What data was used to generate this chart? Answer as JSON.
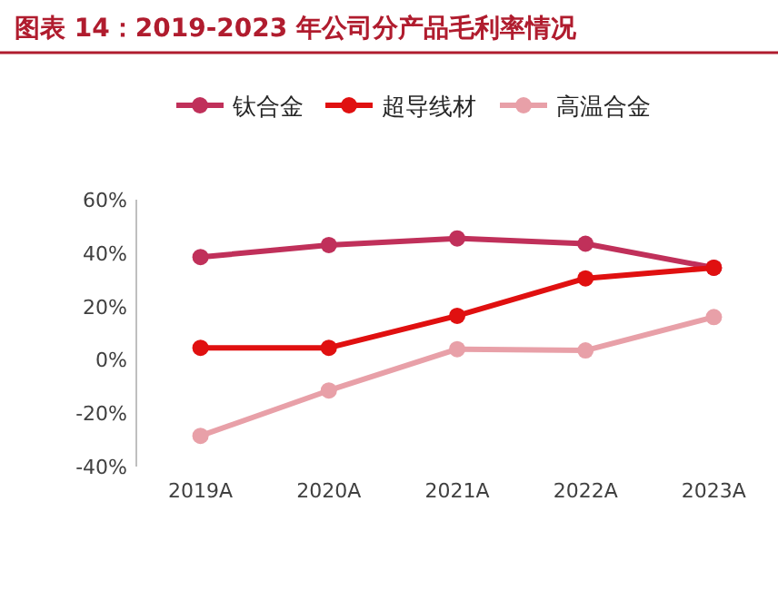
{
  "chart_data": {
    "type": "line",
    "title": "图表 14：2019-2023 年公司分产品毛利率情况",
    "categories": [
      "2019A",
      "2020A",
      "2021A",
      "2022A",
      "2023A"
    ],
    "series": [
      {
        "name": "钛合金",
        "color": "#c0305a",
        "values": [
          38.5,
          43,
          45.5,
          43.5,
          34.5
        ]
      },
      {
        "name": "超导线材",
        "color": "#e01010",
        "values": [
          4.5,
          4.5,
          16.5,
          30.5,
          34.5
        ]
      },
      {
        "name": "高温合金",
        "color": "#e8a0a8",
        "values": [
          -28.5,
          -11.5,
          4,
          3.5,
          16
        ]
      }
    ],
    "ylim": [
      -40,
      60
    ],
    "yticks": [
      {
        "value": -40,
        "label": "-40%"
      },
      {
        "value": -20,
        "label": "-20%"
      },
      {
        "value": 0,
        "label": "0%"
      },
      {
        "value": 20,
        "label": "20%"
      },
      {
        "value": 40,
        "label": "40%"
      },
      {
        "value": 60,
        "label": "60%"
      }
    ],
    "grid": false,
    "legend": "top",
    "marker": "circle",
    "line_style": "solid"
  }
}
